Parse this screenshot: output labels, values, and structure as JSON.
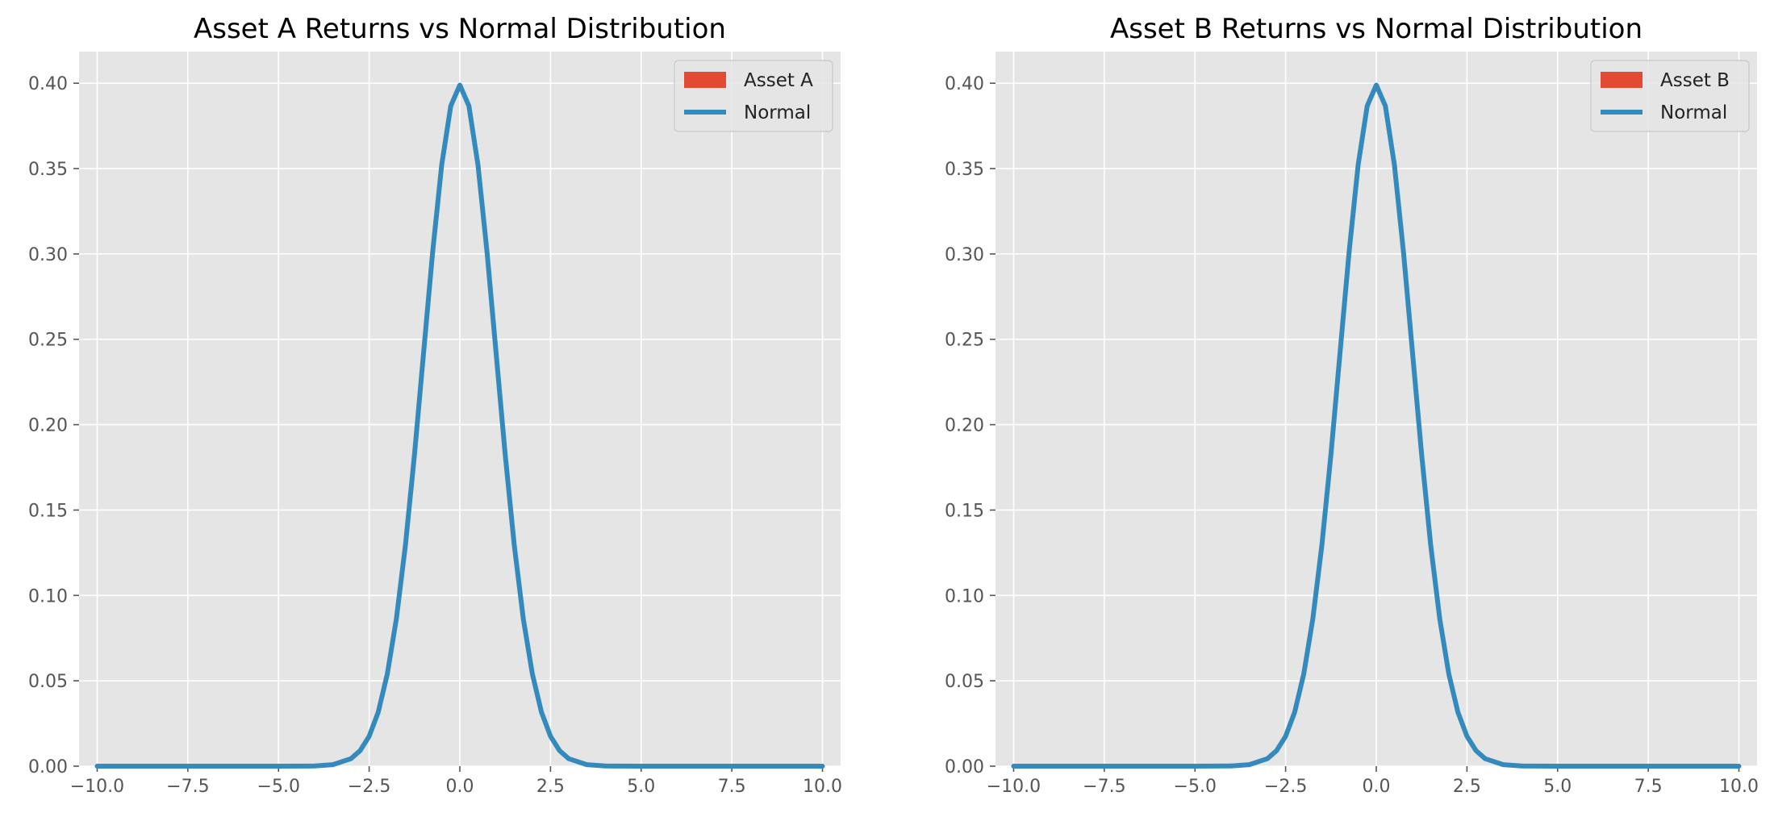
{
  "colors": {
    "plot_background": "#e5e5e5",
    "grid": "#ffffff",
    "histogram": "#e24a33",
    "normal_line": "#348abd",
    "tick_text": "#555555",
    "title_text": "#000000"
  },
  "chart_data": [
    {
      "type": "line",
      "title": "Asset A Returns vs Normal Distribution",
      "xlabel": "",
      "ylabel": "",
      "xlim": [
        -10.5,
        10.5
      ],
      "ylim": [
        0,
        0.4185
      ],
      "x_ticks": [
        -10.0,
        -7.5,
        -5.0,
        -2.5,
        0.0,
        2.5,
        5.0,
        7.5,
        10.0
      ],
      "x_tick_labels": [
        "−10.0",
        "−7.5",
        "−5.0",
        "−2.5",
        "0.0",
        "2.5",
        "5.0",
        "7.5",
        "10.0"
      ],
      "y_ticks": [
        0.0,
        0.05,
        0.1,
        0.15,
        0.2,
        0.25,
        0.3,
        0.35,
        0.4
      ],
      "y_tick_labels": [
        "0.00",
        "0.05",
        "0.10",
        "0.15",
        "0.20",
        "0.25",
        "0.30",
        "0.35",
        "0.40"
      ],
      "grid": true,
      "legend_position": "top-right",
      "legend": [
        {
          "label": "Asset A",
          "kind": "patch"
        },
        {
          "label": "Normal",
          "kind": "line"
        }
      ],
      "histogram_values": [],
      "series": [
        {
          "name": "Normal",
          "x": [
            -10.0,
            -5.0,
            -4.0,
            -3.5,
            -3.0,
            -2.75,
            -2.5,
            -2.25,
            -2.0,
            -1.75,
            -1.5,
            -1.25,
            -1.0,
            -0.75,
            -0.5,
            -0.25,
            0.0,
            0.25,
            0.5,
            0.75,
            1.0,
            1.25,
            1.5,
            1.75,
            2.0,
            2.25,
            2.5,
            2.75,
            3.0,
            3.5,
            4.0,
            5.0,
            10.0
          ],
          "y": [
            0.0,
            0.0,
            0.0001,
            0.0009,
            0.0044,
            0.0091,
            0.0175,
            0.0317,
            0.054,
            0.0863,
            0.1295,
            0.1826,
            0.242,
            0.3011,
            0.3521,
            0.3867,
            0.3989,
            0.3867,
            0.3521,
            0.3011,
            0.242,
            0.1826,
            0.1295,
            0.0863,
            0.054,
            0.0317,
            0.0175,
            0.0091,
            0.0044,
            0.0009,
            0.0001,
            0.0,
            0.0
          ]
        }
      ]
    },
    {
      "type": "line",
      "title": "Asset B Returns vs Normal Distribution",
      "xlabel": "",
      "ylabel": "",
      "xlim": [
        -10.5,
        10.5
      ],
      "ylim": [
        0,
        0.4185
      ],
      "x_ticks": [
        -10.0,
        -7.5,
        -5.0,
        -2.5,
        0.0,
        2.5,
        5.0,
        7.5,
        10.0
      ],
      "x_tick_labels": [
        "−10.0",
        "−7.5",
        "−5.0",
        "−2.5",
        "0.0",
        "2.5",
        "5.0",
        "7.5",
        "10.0"
      ],
      "y_ticks": [
        0.0,
        0.05,
        0.1,
        0.15,
        0.2,
        0.25,
        0.3,
        0.35,
        0.4
      ],
      "y_tick_labels": [
        "0.00",
        "0.05",
        "0.10",
        "0.15",
        "0.20",
        "0.25",
        "0.30",
        "0.35",
        "0.40"
      ],
      "grid": true,
      "legend_position": "top-right",
      "legend": [
        {
          "label": "Asset B",
          "kind": "patch"
        },
        {
          "label": "Normal",
          "kind": "line"
        }
      ],
      "histogram_values": [],
      "series": [
        {
          "name": "Normal",
          "x": [
            -10.0,
            -5.0,
            -4.0,
            -3.5,
            -3.0,
            -2.75,
            -2.5,
            -2.25,
            -2.0,
            -1.75,
            -1.5,
            -1.25,
            -1.0,
            -0.75,
            -0.5,
            -0.25,
            0.0,
            0.25,
            0.5,
            0.75,
            1.0,
            1.25,
            1.5,
            1.75,
            2.0,
            2.25,
            2.5,
            2.75,
            3.0,
            3.5,
            4.0,
            5.0,
            10.0
          ],
          "y": [
            0.0,
            0.0,
            0.0001,
            0.0009,
            0.0044,
            0.0091,
            0.0175,
            0.0317,
            0.054,
            0.0863,
            0.1295,
            0.1826,
            0.242,
            0.3011,
            0.3521,
            0.3867,
            0.3989,
            0.3867,
            0.3521,
            0.3011,
            0.242,
            0.1826,
            0.1295,
            0.0863,
            0.054,
            0.0317,
            0.0175,
            0.0091,
            0.0044,
            0.0009,
            0.0001,
            0.0,
            0.0
          ]
        }
      ]
    }
  ]
}
